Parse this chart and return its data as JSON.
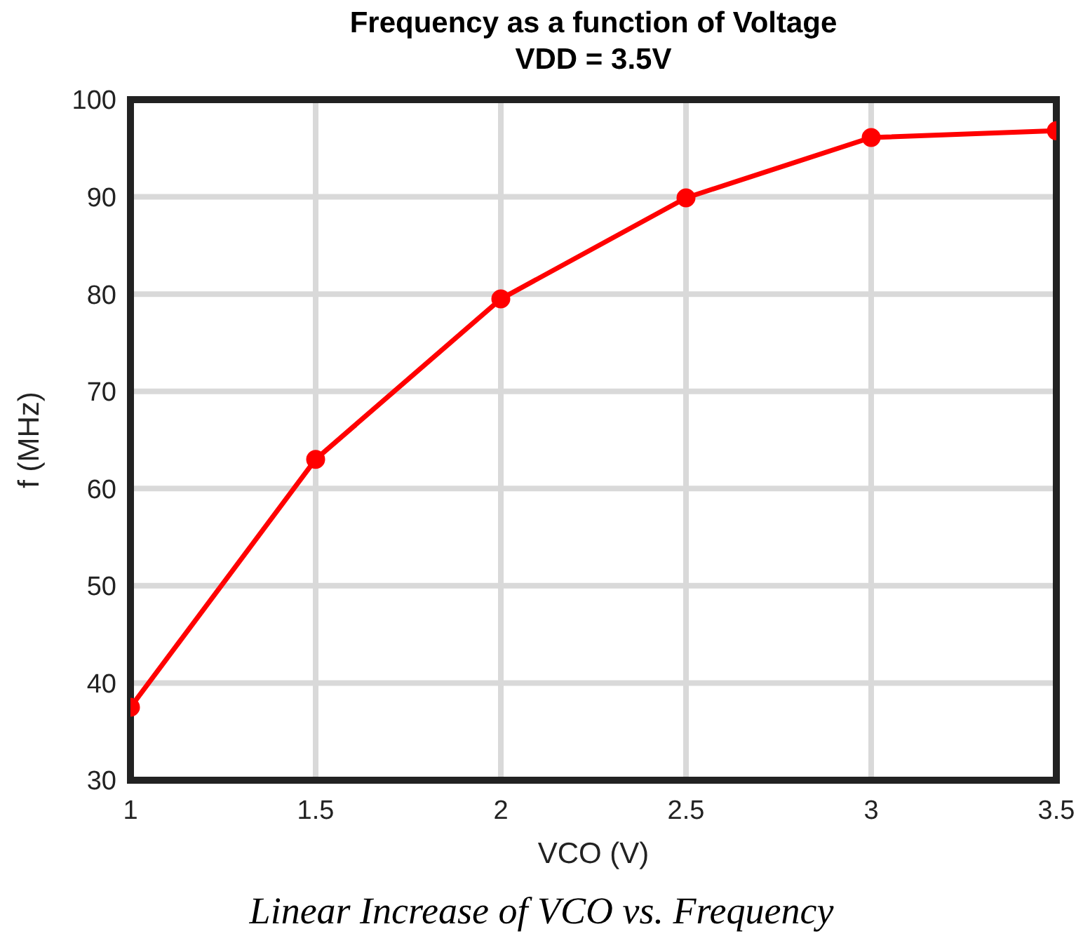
{
  "chart_data": {
    "type": "line",
    "title": "Frequency as a function of Voltage",
    "subtitle": "VDD = 3.5V",
    "xlabel": "VCO (V)",
    "ylabel": "f (MHz)",
    "annotations": [
      "Linear Increase of VCO vs. Frequency"
    ],
    "x": [
      1,
      1.5,
      2,
      2.5,
      3,
      3.5
    ],
    "series": [
      {
        "color": "#ff0000",
        "values": [
          37.5,
          63,
          79.5,
          89.9,
          96.1,
          96.8
        ]
      }
    ],
    "xlim": [
      1,
      3.5
    ],
    "xticks": [
      1,
      1.5,
      2,
      2.5,
      3,
      3.5
    ],
    "ylim": [
      30,
      100
    ],
    "yticks": [
      30,
      40,
      50,
      60,
      70,
      80,
      90,
      100
    ],
    "grid": true,
    "marker": "circle",
    "line_style": "solid"
  }
}
